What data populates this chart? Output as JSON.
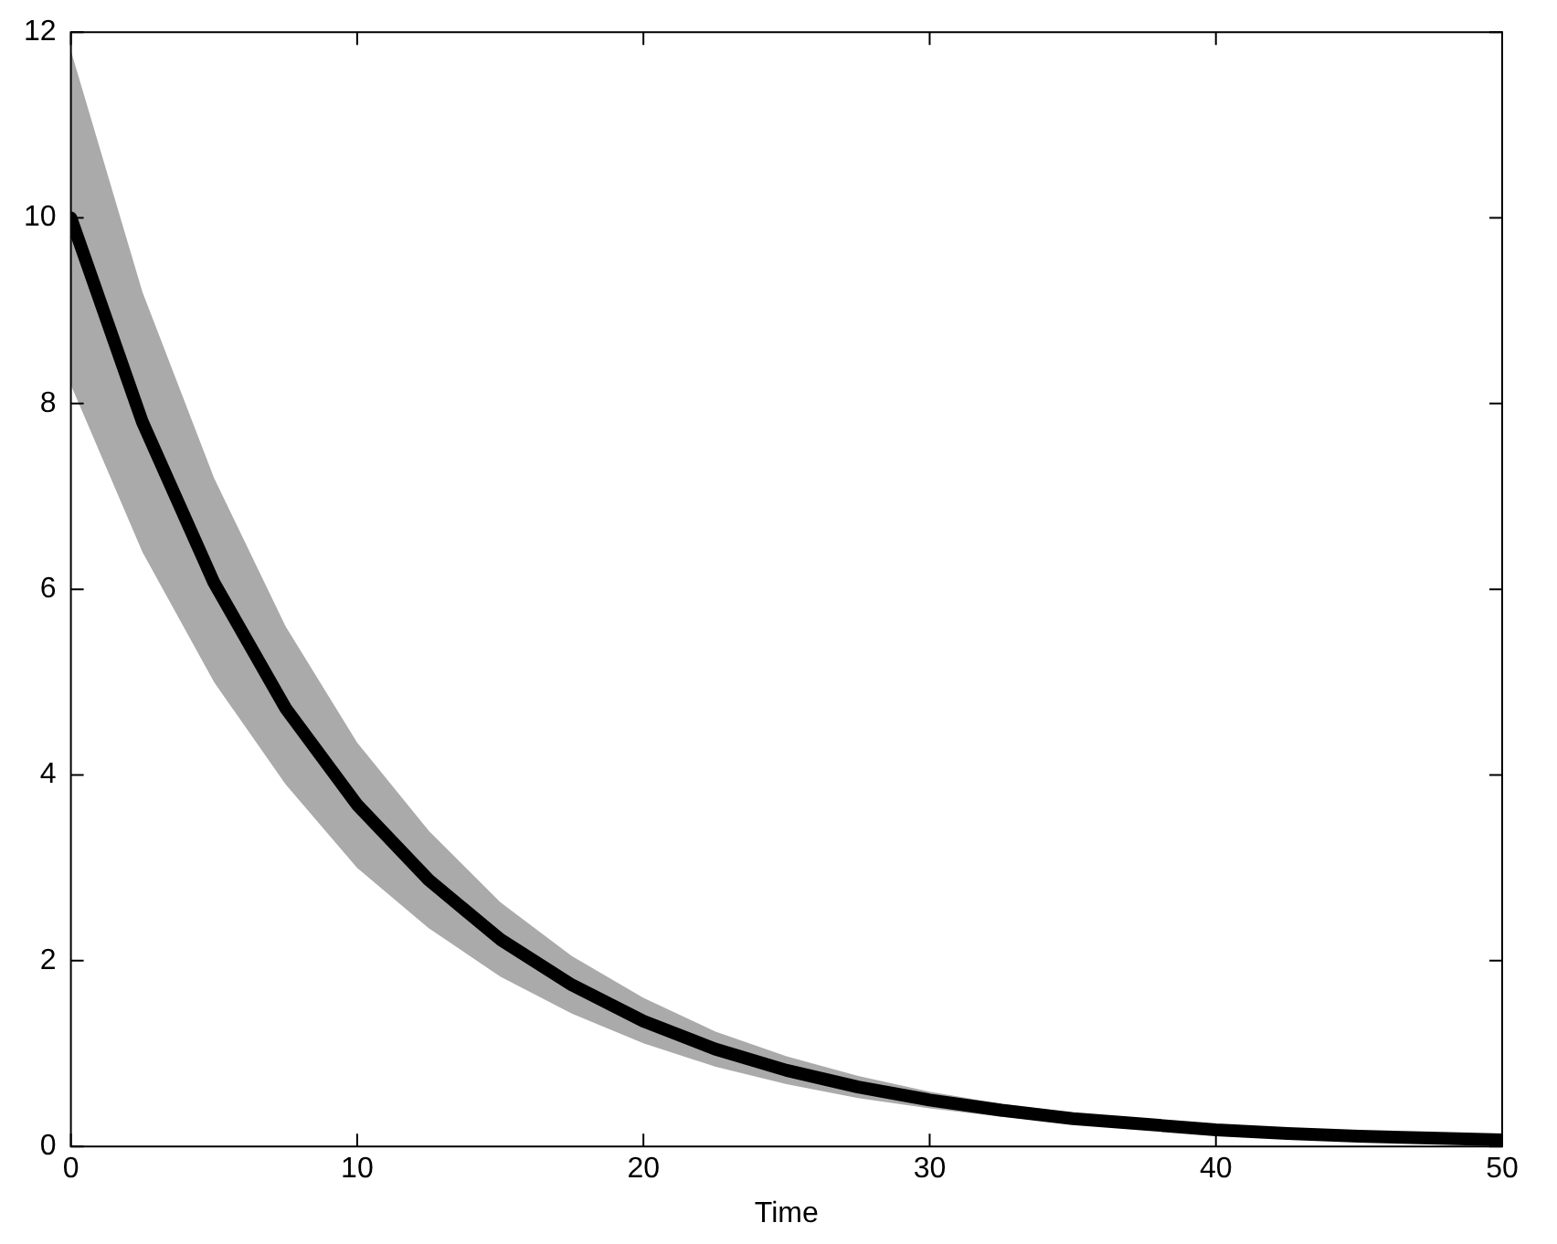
{
  "chart_data": {
    "type": "line",
    "xlabel": "Time",
    "x": [
      0,
      2.5,
      5,
      7.5,
      10,
      12.5,
      15,
      17.5,
      20,
      22.5,
      25,
      27.5,
      30,
      32.5,
      35,
      37.5,
      40,
      42.5,
      45,
      47.5,
      50
    ],
    "series": [
      {
        "color": "#000000",
        "values": [
          10,
          7.8,
          6.07,
          4.72,
          3.68,
          2.87,
          2.23,
          1.74,
          1.35,
          1.05,
          0.82,
          0.64,
          0.5,
          0.39,
          0.3,
          0.24,
          0.18,
          0.14,
          0.11,
          0.09,
          0.07
        ],
        "lower": [
          8.2,
          6.4,
          5.0,
          3.9,
          3.0,
          2.35,
          1.83,
          1.43,
          1.11,
          0.86,
          0.67,
          0.52,
          0.41,
          0.32,
          0.25,
          0.2,
          0.15,
          0.12,
          0.09,
          0.07,
          0.06
        ],
        "upper": [
          11.8,
          9.2,
          7.2,
          5.6,
          4.35,
          3.4,
          2.63,
          2.05,
          1.6,
          1.24,
          0.97,
          0.76,
          0.59,
          0.46,
          0.36,
          0.28,
          0.22,
          0.17,
          0.13,
          0.1,
          0.08
        ]
      }
    ],
    "xlim": [
      0,
      50
    ],
    "xticks": [
      0,
      10,
      20,
      30,
      40,
      50
    ],
    "ylim": [
      0,
      12
    ],
    "yticks": [
      0,
      2,
      4,
      6,
      8,
      10,
      12
    ],
    "grid": false,
    "legend": false,
    "marker": "none",
    "line_style": "solid"
  }
}
